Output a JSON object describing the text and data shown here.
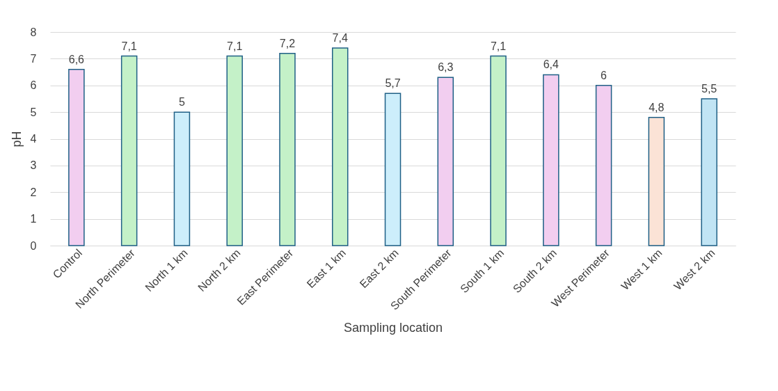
{
  "chart_data": {
    "type": "bar",
    "xlabel": "Sampling location",
    "ylabel": "pH",
    "categories": [
      "Control",
      "North Perimeter",
      "North 1 km",
      "North 2 km",
      "East Perimeter",
      "East 1 km",
      "East 2 km",
      "South Perimeter",
      "South 1 km",
      "South 2 km",
      "West Perimeter",
      "West 1 km",
      "West 2 km"
    ],
    "values": [
      6.6,
      7.1,
      5,
      7.1,
      7.2,
      7.4,
      5.7,
      6.3,
      7.1,
      6.4,
      6,
      4.8,
      5.5
    ],
    "value_labels": [
      "6,6",
      "7,1",
      "5",
      "7,1",
      "7,2",
      "7,4",
      "5,7",
      "6,3",
      "7,1",
      "6,4",
      "6",
      "4,8",
      "5,5"
    ],
    "colors": [
      "#f2cef0",
      "#c4f1c8",
      "#cdeefb",
      "#c4f1c8",
      "#c4f1c8",
      "#c4f1c8",
      "#cdeefb",
      "#f2cef0",
      "#c4f1c8",
      "#f2cef0",
      "#f2cef0",
      "#fbe3d6",
      "#c1e4f4"
    ],
    "ylim": [
      0,
      8
    ],
    "yticks": [
      0,
      1,
      2,
      3,
      4,
      5,
      6,
      7,
      8
    ],
    "grid": "y"
  }
}
